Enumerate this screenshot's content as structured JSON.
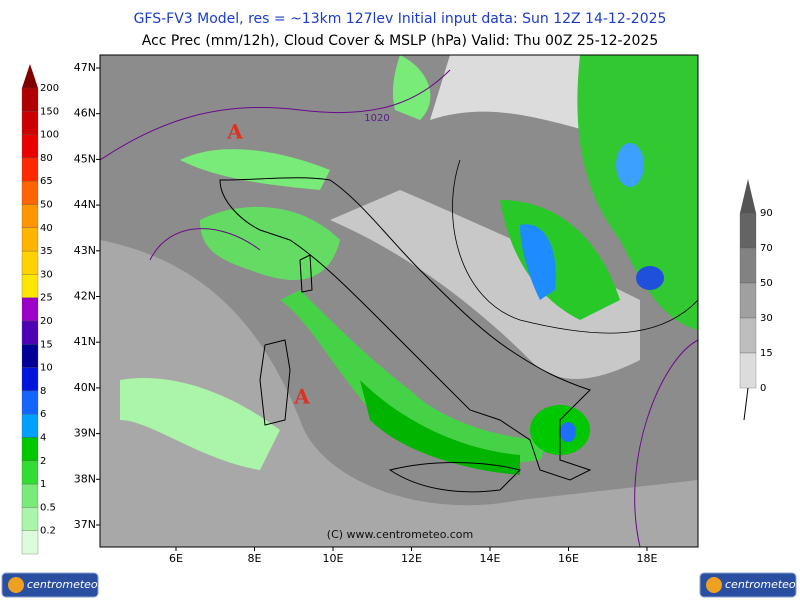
{
  "header": {
    "line1": "GFS-FV3 Model, res = ~13km 127lev    Initial input data: Sun 12Z 14-12-2025",
    "line2": "Acc Prec (mm/12h), Cloud Cover & MSLP (hPa)  Valid: Thu 00Z 25-12-2025"
  },
  "map": {
    "lat_labels": [
      "47N",
      "46N",
      "45N",
      "44N",
      "43N",
      "42N",
      "41N",
      "40N",
      "39N",
      "38N",
      "37N"
    ],
    "lon_labels": [
      "6E",
      "8E",
      "10E",
      "12E",
      "14E",
      "16E",
      "18E"
    ],
    "high_markers": [
      "A",
      "A"
    ],
    "isobar_label": "1020",
    "credit": "(C) www.centrometeo.com"
  },
  "precip_legend": [
    {
      "label": "200",
      "color": "#b00000"
    },
    {
      "label": "150",
      "color": "#cc0000"
    },
    {
      "label": "100",
      "color": "#e80000"
    },
    {
      "label": "80",
      "color": "#ff2a00"
    },
    {
      "label": "65",
      "color": "#ff6400"
    },
    {
      "label": "50",
      "color": "#ff9600"
    },
    {
      "label": "40",
      "color": "#ffb400"
    },
    {
      "label": "35",
      "color": "#ffd200"
    },
    {
      "label": "30",
      "color": "#ffe600"
    },
    {
      "label": "25",
      "color": "#9a00c8"
    },
    {
      "label": "20",
      "color": "#5000b4"
    },
    {
      "label": "15",
      "color": "#000096"
    },
    {
      "label": "10",
      "color": "#0014dc"
    },
    {
      "label": "8",
      "color": "#1464ff"
    },
    {
      "label": "6",
      "color": "#00a0ff"
    },
    {
      "label": "4",
      "color": "#00c800"
    },
    {
      "label": "2",
      "color": "#32dc32"
    },
    {
      "label": "1",
      "color": "#78eb78"
    },
    {
      "label": "0.5",
      "color": "#aaf5aa"
    },
    {
      "label": "0.2",
      "color": "#dcfcdc"
    }
  ],
  "cloud_legend": [
    {
      "label": "90",
      "color": "#646464"
    },
    {
      "label": "70",
      "color": "#828282"
    },
    {
      "label": "50",
      "color": "#a0a0a0"
    },
    {
      "label": "30",
      "color": "#bebebe"
    },
    {
      "label": "15",
      "color": "#dcdcdc"
    },
    {
      "label": "0",
      "color": "#f0f0f0"
    }
  ],
  "logos": [
    "centrometeo",
    "centrometeo"
  ]
}
